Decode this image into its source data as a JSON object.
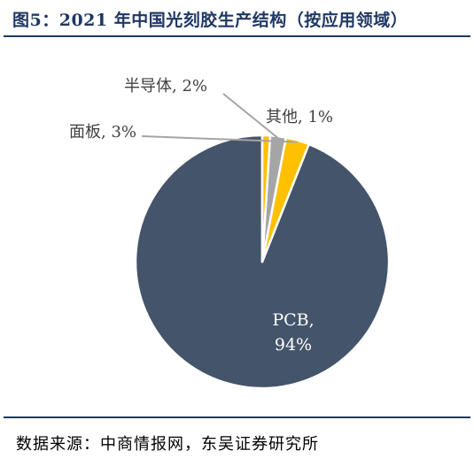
{
  "title": "图5：2021 年中国光刻胶生产结构（按应用领域）",
  "source": "数据来源：中商情报网，东吴证券研究所",
  "chart_data": {
    "type": "pie",
    "title": "图5：2021 年中国光刻胶生产结构（按应用领域）",
    "slices": [
      {
        "label": "PCB",
        "value": 94,
        "display": "94%",
        "color": "#44546a"
      },
      {
        "label": "面板",
        "value": 3,
        "display": "3%",
        "color": "#ffc000"
      },
      {
        "label": "半导体",
        "value": 2,
        "display": "2%",
        "color": "#a5a5a5"
      },
      {
        "label": "其他",
        "value": 1,
        "display": "1%",
        "color": "#ffc000"
      }
    ],
    "start_angle": "12 o'clock",
    "direction": "counterclockwise",
    "legend": "none"
  }
}
